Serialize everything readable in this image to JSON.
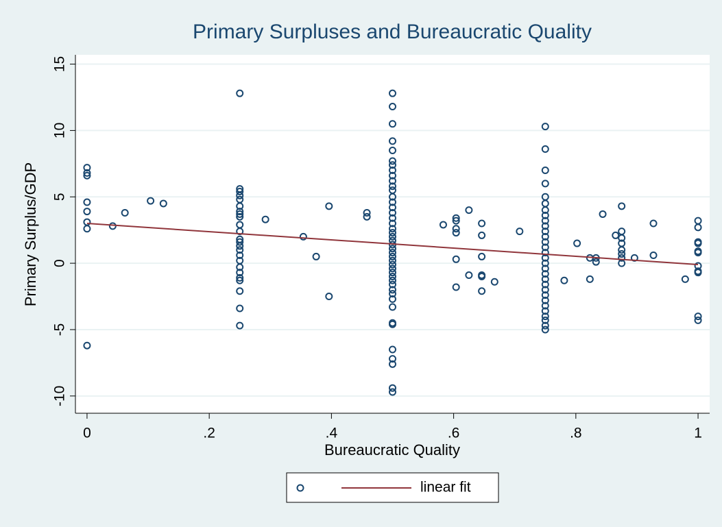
{
  "chart_data": {
    "type": "scatter",
    "title": "Primary Surpluses and Bureaucratic Quality",
    "x_label": "Bureaucratic Quality",
    "y_label": "Primary Surplus/GDP",
    "xlim": [
      -0.019,
      1.019
    ],
    "ylim": [
      -11.3,
      15.7
    ],
    "xticks": [
      0,
      {
        "value": 0.2,
        "label": ".2"
      },
      {
        "value": 0.4,
        "label": ".4"
      },
      {
        "value": 0.6,
        "label": ".6"
      },
      {
        "value": 0.8,
        "label": ".8"
      },
      1
    ],
    "yticks": [
      -10,
      -5,
      0,
      5,
      10,
      15
    ],
    "grid": true,
    "series": [
      {
        "type": "scatter",
        "color": "#1a476f",
        "x": [
          0,
          0,
          0,
          0,
          0,
          0,
          0,
          0,
          0.042,
          0.062,
          0.104,
          0.125,
          0.25,
          0.25,
          0.25,
          0.25,
          0.25,
          0.25,
          0.25,
          0.25,
          0.25,
          0.25,
          0.25,
          0.25,
          0.25,
          0.25,
          0.25,
          0.25,
          0.25,
          0.25,
          0.25,
          0.25,
          0.25,
          0.25,
          0.25,
          0.25,
          0.292,
          0.354,
          0.375,
          0.396,
          0.396,
          0.458,
          0.458,
          0.5,
          0.5,
          0.5,
          0.5,
          0.5,
          0.5,
          0.5,
          0.5,
          0.5,
          0.5,
          0.5,
          0.5,
          0.5,
          0.5,
          0.5,
          0.5,
          0.5,
          0.5,
          0.5,
          0.5,
          0.5,
          0.5,
          0.5,
          0.5,
          0.5,
          0.5,
          0.5,
          0.5,
          0.5,
          0.5,
          0.5,
          0.5,
          0.5,
          0.5,
          0.5,
          0.5,
          0.5,
          0.5,
          0.5,
          0.5,
          0.5,
          0.5,
          0.5,
          0.5,
          0.583,
          0.604,
          0.604,
          0.604,
          0.604,
          0.604,
          0.604,
          0.625,
          0.625,
          0.646,
          0.646,
          0.646,
          0.646,
          0.646,
          0.646,
          0.667,
          0.708,
          0.75,
          0.75,
          0.75,
          0.75,
          0.75,
          0.75,
          0.75,
          0.75,
          0.75,
          0.75,
          0.75,
          0.75,
          0.75,
          0.75,
          0.75,
          0.75,
          0.75,
          0.75,
          0.75,
          0.75,
          0.75,
          0.75,
          0.75,
          0.75,
          0.75,
          0.75,
          0.75,
          0.75,
          0.75,
          0.75,
          0.781,
          0.802,
          0.823,
          0.823,
          0.833,
          0.833,
          0.844,
          0.865,
          0.875,
          0.875,
          0.875,
          0.875,
          0.875,
          0.875,
          0.875,
          0.875,
          0.896,
          0.927,
          0.927,
          0.979,
          1,
          1,
          1,
          1,
          1,
          1,
          1,
          1,
          1,
          1,
          1
        ],
        "values": [
          7.2,
          6.8,
          6.6,
          4.6,
          3.9,
          3.1,
          2.6,
          -6.2,
          2.8,
          3.8,
          4.7,
          4.5,
          12.8,
          5.6,
          5.4,
          5.1,
          4.8,
          4.3,
          3.9,
          3.7,
          3.5,
          2.9,
          2.4,
          1.8,
          1.6,
          1.3,
          1.0,
          0.6,
          0.2,
          -0.3,
          -0.7,
          -1.1,
          -1.3,
          -2.1,
          -3.4,
          -4.7,
          3.3,
          2.0,
          0.5,
          4.3,
          -2.5,
          3.8,
          3.5,
          12.8,
          11.8,
          10.5,
          9.2,
          8.5,
          7.7,
          7.4,
          7.0,
          6.6,
          6.2,
          5.8,
          5.5,
          5.0,
          4.6,
          4.2,
          3.8,
          3.4,
          3.0,
          2.6,
          2.3,
          2.0,
          1.7,
          1.4,
          1.1,
          0.8,
          0.5,
          0.2,
          -0.1,
          -0.4,
          -0.7,
          -1.0,
          -1.3,
          -1.6,
          -2.0,
          -2.3,
          -2.7,
          -3.3,
          -4.5,
          -4.6,
          -6.5,
          -7.2,
          -7.6,
          -9.4,
          -9.7,
          2.9,
          3.4,
          3.2,
          2.6,
          2.3,
          0.3,
          -1.8,
          4.0,
          -0.9,
          3.0,
          2.1,
          0.5,
          -0.9,
          -1.0,
          -2.1,
          -1.4,
          2.4,
          10.3,
          8.6,
          7.0,
          6.0,
          5.0,
          4.5,
          4.0,
          3.6,
          3.2,
          2.8,
          2.4,
          2.0,
          1.6,
          1.2,
          0.8,
          0.4,
          0.0,
          -0.4,
          -0.8,
          -1.2,
          -1.6,
          -2.0,
          -2.4,
          -2.8,
          -3.2,
          -3.6,
          -4.0,
          -4.3,
          -4.7,
          -5.0,
          -1.3,
          1.5,
          0.4,
          -1.2,
          0.4,
          0.1,
          3.7,
          2.1,
          4.3,
          2.4,
          1.9,
          1.5,
          1.0,
          0.7,
          0.4,
          0.0,
          0.4,
          3.0,
          0.6,
          -1.2,
          3.2,
          2.7,
          1.6,
          1.5,
          0.9,
          0.8,
          -0.2,
          -0.6,
          -0.7,
          -4.0,
          -4.3
        ]
      },
      {
        "type": "line",
        "name": "linear fit",
        "color": "#90353b",
        "x": [
          0,
          1
        ],
        "values": [
          3.0,
          -0.1
        ]
      }
    ]
  }
}
